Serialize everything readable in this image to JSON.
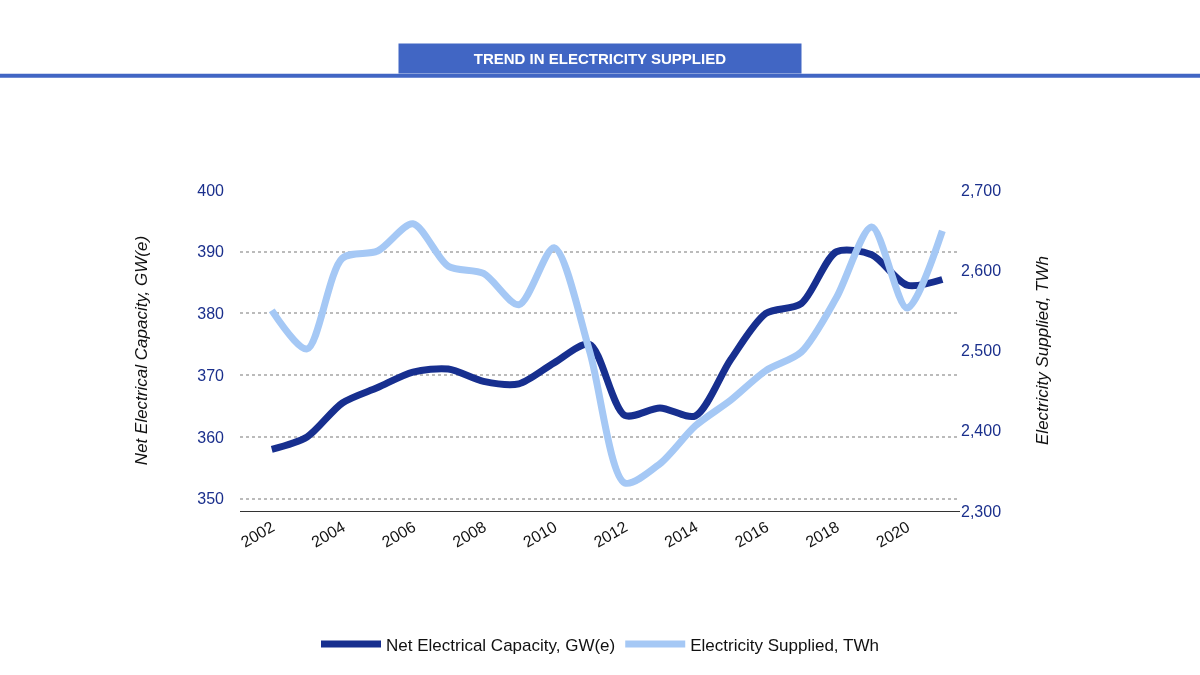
{
  "chart_data": {
    "type": "line",
    "title": "TREND IN ELECTRICITY SUPPLIED",
    "ylabel": "Net Electrical Capacity, GW(e)",
    "y2label": "Electricity Supplied, TWh",
    "x": [
      2002,
      2003,
      2004,
      2005,
      2006,
      2007,
      2008,
      2009,
      2010,
      2011,
      2012,
      2013,
      2014,
      2015,
      2016,
      2017,
      2018,
      2019,
      2020,
      2021
    ],
    "series": [
      {
        "name": "Net Electrical Capacity, GW(e)",
        "color": "#172f8f",
        "values": [
          358,
          360,
          365.5,
          368,
          370.5,
          371,
          369,
          368.6,
          372,
          375,
          363.5,
          364.7,
          363.4,
          372.5,
          380,
          381.6,
          390,
          389.5,
          384.6,
          385.5
        ]
      },
      {
        "name": "Electricity Supplied, TWh",
        "color": "#a5c8f5",
        "axis": "y2",
        "values": [
          2550,
          2502,
          2615,
          2624,
          2658,
          2605,
          2596,
          2557,
          2628,
          2500,
          2335,
          2359,
          2406,
          2438,
          2475,
          2498,
          2566,
          2654,
          2553,
          2649
        ]
      }
    ],
    "xlim": [
      2001.1,
      2021.5
    ],
    "xticks": [
      2002,
      2004,
      2006,
      2008,
      2010,
      2012,
      2014,
      2016,
      2018,
      2020
    ],
    "ylim": [
      348,
      400
    ],
    "yticks": [
      350,
      360,
      370,
      380,
      390,
      400
    ],
    "y2lim": [
      2300,
      2700
    ],
    "y2ticks": [
      {
        "value": 2300,
        "label": "2,300"
      },
      {
        "value": 2400,
        "label": "2,400"
      },
      {
        "value": 2500,
        "label": "2,500"
      },
      {
        "value": 2600,
        "label": "2,600"
      },
      {
        "value": 2700,
        "label": "2,700"
      }
    ],
    "grid": "y",
    "legend": "bottom",
    "marker": "none",
    "line_style": "solid"
  }
}
